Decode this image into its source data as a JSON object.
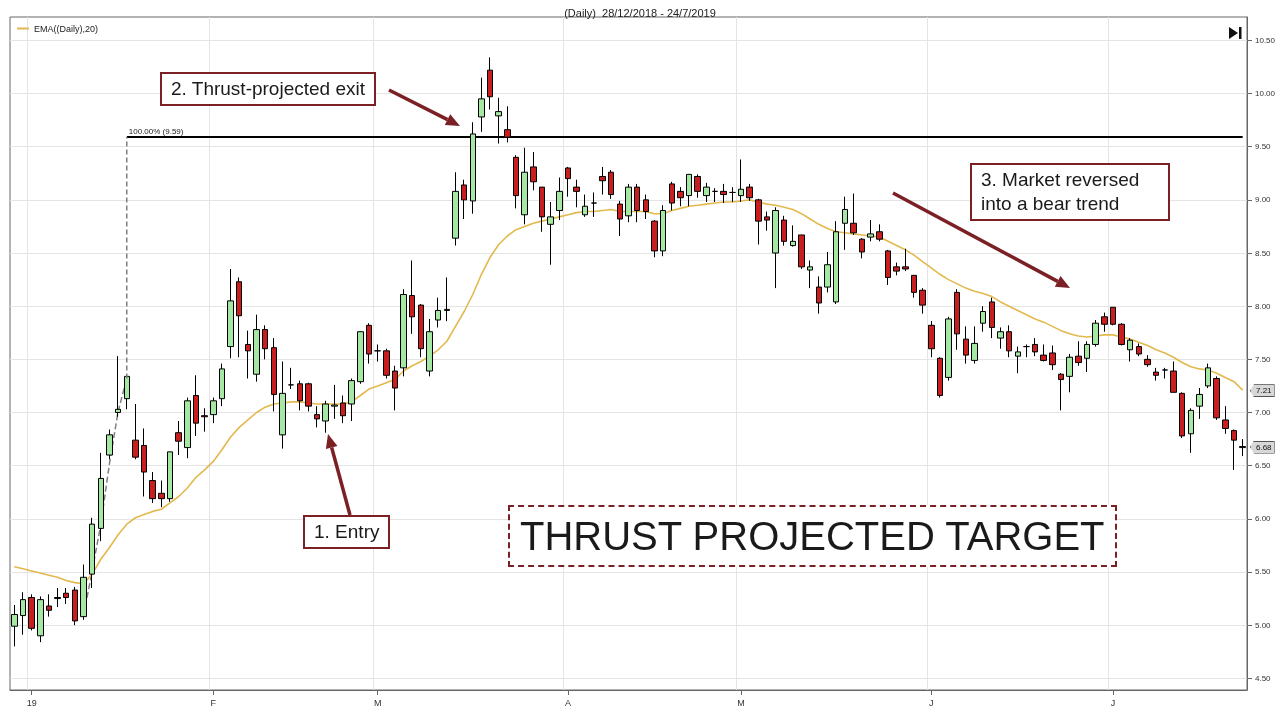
{
  "chart_data": {
    "type": "candlestick",
    "title": "(Daily)  28/12/2018 - 24/7/2019",
    "categories": [
      null,
      null,
      "19",
      null,
      null,
      null,
      null,
      null,
      null,
      null,
      null,
      null,
      null,
      null,
      null,
      null,
      null,
      null,
      null,
      null,
      null,
      null,
      null,
      "F",
      null,
      null,
      null,
      null,
      null,
      null,
      null,
      null,
      null,
      null,
      null,
      null,
      null,
      null,
      null,
      null,
      null,
      null,
      "M",
      null,
      null,
      null,
      null,
      null,
      null,
      null,
      null,
      null,
      null,
      null,
      null,
      null,
      null,
      null,
      null,
      null,
      null,
      null,
      null,
      null,
      "A",
      null,
      null,
      null,
      null,
      null,
      null,
      null,
      null,
      null,
      null,
      null,
      null,
      null,
      null,
      null,
      null,
      null,
      null,
      null,
      "M",
      null,
      null,
      null,
      null,
      null,
      null,
      null,
      null,
      null,
      null,
      null,
      null,
      null,
      null,
      null,
      null,
      null,
      null,
      null,
      null,
      null,
      "J",
      null,
      null,
      null,
      null,
      null,
      null,
      null,
      null,
      null,
      null,
      null,
      null,
      null,
      null,
      null,
      null,
      null,
      null,
      null,
      null,
      "J",
      null,
      null,
      null,
      null,
      null,
      null,
      null,
      null,
      null,
      null,
      null,
      null,
      null,
      null,
      null
    ],
    "ohlc": [
      [
        4.99,
        5.19,
        4.8,
        5.1
      ],
      [
        5.09,
        5.31,
        4.91,
        5.24
      ],
      [
        5.26,
        5.29,
        4.95,
        4.97
      ],
      [
        4.9,
        5.27,
        4.84,
        5.24
      ],
      [
        5.18,
        5.29,
        5.08,
        5.14
      ],
      [
        5.25,
        5.35,
        5.17,
        5.26
      ],
      [
        5.3,
        5.35,
        5.2,
        5.26
      ],
      [
        5.33,
        5.36,
        5.0,
        5.04
      ],
      [
        5.08,
        5.57,
        5.05,
        5.45
      ],
      [
        5.48,
        6.01,
        5.35,
        5.95
      ],
      [
        5.91,
        6.62,
        5.79,
        6.38
      ],
      [
        6.6,
        6.84,
        6.56,
        6.79
      ],
      [
        7.0,
        7.53,
        6.96,
        7.03
      ],
      [
        7.13,
        7.36,
        7.03,
        7.34
      ],
      [
        6.74,
        7.08,
        6.56,
        6.58
      ],
      [
        6.69,
        6.85,
        6.21,
        6.44
      ],
      [
        6.36,
        6.44,
        6.15,
        6.19
      ],
      [
        6.24,
        6.36,
        6.11,
        6.19
      ],
      [
        6.19,
        6.63,
        6.16,
        6.63
      ],
      [
        6.81,
        6.92,
        6.6,
        6.73
      ],
      [
        6.67,
        7.14,
        6.57,
        7.11
      ],
      [
        7.16,
        7.35,
        6.78,
        6.9
      ],
      [
        6.97,
        7.04,
        6.82,
        6.96
      ],
      [
        6.98,
        7.14,
        6.9,
        7.11
      ],
      [
        7.13,
        7.46,
        7.06,
        7.41
      ],
      [
        7.62,
        8.35,
        7.51,
        8.05
      ],
      [
        8.23,
        8.27,
        7.52,
        7.91
      ],
      [
        7.64,
        7.77,
        7.32,
        7.58
      ],
      [
        7.36,
        7.92,
        7.29,
        7.78
      ],
      [
        7.78,
        7.82,
        7.5,
        7.6
      ],
      [
        7.61,
        7.7,
        7.01,
        7.17
      ],
      [
        6.79,
        7.48,
        6.66,
        7.18
      ],
      [
        7.26,
        7.42,
        7.22,
        7.26
      ],
      [
        7.27,
        7.3,
        7.02,
        7.11
      ],
      [
        7.27,
        7.28,
        7.01,
        7.06
      ],
      [
        6.98,
        7.06,
        6.86,
        6.94
      ],
      [
        6.92,
        7.11,
        6.81,
        7.08
      ],
      [
        7.06,
        7.26,
        6.94,
        7.07
      ],
      [
        7.09,
        7.16,
        6.9,
        6.97
      ],
      [
        7.08,
        7.32,
        6.92,
        7.3
      ],
      [
        7.29,
        7.76,
        7.27,
        7.76
      ],
      [
        7.82,
        7.84,
        7.46,
        7.55
      ],
      [
        7.58,
        7.64,
        7.48,
        7.58
      ],
      [
        7.58,
        7.6,
        7.32,
        7.35
      ],
      [
        7.39,
        7.44,
        7.02,
        7.23
      ],
      [
        7.42,
        8.16,
        7.34,
        8.11
      ],
      [
        8.1,
        8.43,
        7.74,
        7.9
      ],
      [
        8.01,
        8.02,
        7.52,
        7.6
      ],
      [
        7.39,
        7.88,
        7.34,
        7.76
      ],
      [
        7.87,
        8.08,
        7.8,
        7.96
      ],
      [
        7.96,
        8.27,
        7.86,
        7.97
      ],
      [
        8.64,
        9.26,
        8.57,
        9.08
      ],
      [
        9.14,
        9.19,
        8.82,
        9.0
      ],
      [
        8.99,
        9.73,
        8.87,
        9.62
      ],
      [
        9.78,
        10.15,
        9.64,
        9.95
      ],
      [
        10.22,
        10.34,
        9.85,
        9.97
      ],
      [
        9.79,
        9.96,
        9.53,
        9.83
      ],
      [
        9.66,
        9.88,
        9.54,
        9.59
      ],
      [
        9.4,
        9.42,
        8.92,
        9.04
      ],
      [
        8.86,
        9.49,
        8.77,
        9.26
      ],
      [
        9.31,
        9.45,
        9.09,
        9.17
      ],
      [
        9.12,
        9.12,
        8.7,
        8.84
      ],
      [
        8.77,
        8.98,
        8.39,
        8.84
      ],
      [
        8.9,
        9.21,
        8.81,
        9.08
      ],
      [
        9.3,
        9.31,
        9.03,
        9.2
      ],
      [
        9.12,
        9.19,
        8.93,
        9.08
      ],
      [
        8.86,
        9.05,
        8.84,
        8.94
      ],
      [
        8.97,
        9.07,
        8.84,
        8.97
      ],
      [
        9.22,
        9.31,
        9.05,
        9.18
      ],
      [
        9.26,
        9.28,
        9.01,
        9.05
      ],
      [
        8.96,
        8.99,
        8.66,
        8.82
      ],
      [
        8.85,
        9.15,
        8.79,
        9.12
      ],
      [
        9.12,
        9.15,
        8.79,
        8.9
      ],
      [
        9.0,
        9.05,
        8.82,
        8.89
      ],
      [
        8.8,
        8.81,
        8.46,
        8.52
      ],
      [
        8.52,
        8.95,
        8.47,
        8.9
      ],
      [
        9.15,
        9.17,
        8.9,
        8.97
      ],
      [
        9.08,
        9.12,
        8.94,
        9.02
      ],
      [
        9.04,
        9.24,
        8.94,
        9.24
      ],
      [
        9.22,
        9.24,
        9.02,
        9.08
      ],
      [
        9.04,
        9.16,
        8.98,
        9.12
      ],
      [
        9.08,
        9.11,
        8.98,
        9.08
      ],
      [
        9.08,
        9.15,
        8.97,
        9.05
      ],
      [
        9.07,
        9.12,
        8.98,
        9.07
      ],
      [
        9.04,
        9.38,
        8.98,
        9.1
      ],
      [
        9.12,
        9.15,
        8.99,
        9.02
      ],
      [
        9.0,
        9.01,
        8.58,
        8.8
      ],
      [
        8.84,
        8.89,
        8.71,
        8.81
      ],
      [
        8.5,
        8.93,
        8.17,
        8.9
      ],
      [
        8.81,
        8.85,
        8.57,
        8.61
      ],
      [
        8.57,
        8.76,
        8.56,
        8.61
      ],
      [
        8.67,
        8.67,
        8.35,
        8.37
      ],
      [
        8.34,
        8.43,
        8.17,
        8.37
      ],
      [
        8.18,
        8.28,
        7.93,
        8.03
      ],
      [
        8.18,
        8.51,
        8.13,
        8.39
      ],
      [
        8.04,
        8.8,
        8.02,
        8.7
      ],
      [
        8.78,
        9.03,
        8.53,
        8.91
      ],
      [
        8.78,
        9.06,
        8.67,
        8.69
      ],
      [
        8.63,
        8.64,
        8.45,
        8.51
      ],
      [
        8.65,
        8.81,
        8.61,
        8.68
      ],
      [
        8.7,
        8.77,
        8.61,
        8.63
      ],
      [
        8.52,
        8.53,
        8.2,
        8.27
      ],
      [
        8.37,
        8.41,
        8.29,
        8.33
      ],
      [
        8.37,
        8.54,
        8.33,
        8.35
      ],
      [
        8.29,
        8.29,
        8.08,
        8.13
      ],
      [
        8.15,
        8.17,
        7.93,
        8.01
      ],
      [
        7.82,
        7.86,
        7.52,
        7.6
      ],
      [
        7.51,
        7.52,
        7.14,
        7.16
      ],
      [
        7.33,
        7.9,
        7.3,
        7.88
      ],
      [
        8.13,
        8.16,
        7.59,
        7.74
      ],
      [
        7.69,
        7.81,
        7.46,
        7.54
      ],
      [
        7.49,
        7.81,
        7.46,
        7.65
      ],
      [
        7.84,
        8.0,
        7.76,
        7.95
      ],
      [
        8.04,
        8.08,
        7.7,
        7.8
      ],
      [
        7.7,
        7.8,
        7.6,
        7.76
      ],
      [
        7.76,
        7.82,
        7.52,
        7.58
      ],
      [
        7.53,
        7.62,
        7.37,
        7.57
      ],
      [
        7.62,
        7.64,
        7.52,
        7.62
      ],
      [
        7.64,
        7.7,
        7.53,
        7.57
      ],
      [
        7.54,
        7.64,
        7.48,
        7.49
      ],
      [
        7.56,
        7.63,
        7.4,
        7.45
      ],
      [
        7.36,
        7.37,
        7.02,
        7.31
      ],
      [
        7.34,
        7.55,
        7.19,
        7.52
      ],
      [
        7.53,
        7.67,
        7.44,
        7.47
      ],
      [
        7.51,
        7.67,
        7.38,
        7.64
      ],
      [
        7.64,
        7.87,
        7.62,
        7.84
      ],
      [
        7.9,
        7.94,
        7.76,
        7.83
      ],
      [
        7.99,
        7.99,
        7.82,
        7.83
      ],
      [
        7.83,
        7.84,
        7.63,
        7.64
      ],
      [
        7.59,
        7.7,
        7.48,
        7.68
      ],
      [
        7.62,
        7.65,
        7.53,
        7.55
      ],
      [
        7.5,
        7.54,
        7.43,
        7.45
      ],
      [
        7.38,
        7.42,
        7.3,
        7.35
      ],
      [
        7.4,
        7.42,
        7.32,
        7.4
      ],
      [
        7.39,
        7.48,
        7.19,
        7.19
      ],
      [
        7.18,
        7.19,
        6.76,
        6.78
      ],
      [
        6.8,
        7.04,
        6.62,
        7.02
      ],
      [
        7.06,
        7.23,
        6.94,
        7.17
      ],
      [
        7.25,
        7.46,
        7.23,
        7.42
      ],
      [
        7.32,
        7.34,
        6.93,
        6.95
      ],
      [
        6.93,
        7.06,
        6.8,
        6.85
      ],
      [
        6.83,
        6.84,
        6.46,
        6.74
      ],
      [
        6.67,
        6.75,
        6.59,
        6.68
      ]
    ],
    "colors": [
      "#a4e8a4",
      "#a4e8a4",
      "#c81e1e",
      "#a4e8a4",
      "#c81e1e",
      "#a4e8a4",
      "#c81e1e",
      "#c81e1e",
      "#a4e8a4",
      "#a4e8a4",
      "#a4e8a4",
      "#a4e8a4",
      "#a4e8a4",
      "#a4e8a4",
      "#c81e1e",
      "#c81e1e",
      "#c81e1e",
      "#c81e1e",
      "#a4e8a4",
      "#c81e1e",
      "#a4e8a4",
      "#c81e1e",
      "#c81e1e",
      "#a4e8a4",
      "#a4e8a4",
      "#a4e8a4",
      "#c81e1e",
      "#c81e1e",
      "#a4e8a4",
      "#c81e1e",
      "#c81e1e",
      "#a4e8a4",
      "#000000",
      "#c81e1e",
      "#c81e1e",
      "#c81e1e",
      "#a4e8a4",
      "#a4e8a4",
      "#c81e1e",
      "#a4e8a4",
      "#a4e8a4",
      "#c81e1e",
      "#000000",
      "#c81e1e",
      "#c81e1e",
      "#a4e8a4",
      "#c81e1e",
      "#c81e1e",
      "#a4e8a4",
      "#a4e8a4",
      "#a4e8a4",
      "#a4e8a4",
      "#c81e1e",
      "#a4e8a4",
      "#a4e8a4",
      "#c81e1e",
      "#a4e8a4",
      "#c81e1e",
      "#c81e1e",
      "#a4e8a4",
      "#c81e1e",
      "#c81e1e",
      "#a4e8a4",
      "#a4e8a4",
      "#c81e1e",
      "#c81e1e",
      "#a4e8a4",
      "#000000",
      "#c81e1e",
      "#c81e1e",
      "#c81e1e",
      "#a4e8a4",
      "#c81e1e",
      "#c81e1e",
      "#c81e1e",
      "#a4e8a4",
      "#c81e1e",
      "#c81e1e",
      "#a4e8a4",
      "#c81e1e",
      "#a4e8a4",
      "#000000",
      "#c81e1e",
      "#000000",
      "#a4e8a4",
      "#c81e1e",
      "#c81e1e",
      "#c81e1e",
      "#a4e8a4",
      "#c81e1e",
      "#a4e8a4",
      "#c81e1e",
      "#a4e8a4",
      "#c81e1e",
      "#a4e8a4",
      "#a4e8a4",
      "#a4e8a4",
      "#c81e1e",
      "#c81e1e",
      "#a4e8a4",
      "#c81e1e",
      "#c81e1e",
      "#c81e1e",
      "#c81e1e",
      "#c81e1e",
      "#c81e1e",
      "#c81e1e",
      "#c81e1e",
      "#a4e8a4",
      "#c81e1e",
      "#c81e1e",
      "#a4e8a4",
      "#a4e8a4",
      "#c81e1e",
      "#a4e8a4",
      "#c81e1e",
      "#a4e8a4",
      "#000000",
      "#c81e1e",
      "#c81e1e",
      "#c81e1e",
      "#c81e1e",
      "#a4e8a4",
      "#c81e1e",
      "#a4e8a4",
      "#a4e8a4",
      "#c81e1e",
      "#c81e1e",
      "#c81e1e",
      "#a4e8a4",
      "#c81e1e",
      "#c81e1e",
      "#c81e1e",
      "#000000",
      "#c81e1e",
      "#c81e1e",
      "#a4e8a4",
      "#a4e8a4",
      "#a4e8a4",
      "#c81e1e",
      "#c81e1e",
      "#c81e1e",
      "#a4e8a4"
    ],
    "series": [
      {
        "type": "line",
        "name": "EMA((Daily),20)",
        "color": "#e3b94e",
        "values": [
          5.55,
          5.53,
          5.51,
          5.49,
          5.47,
          5.45,
          5.42,
          5.4,
          5.39,
          5.48,
          5.62,
          5.73,
          5.85,
          5.95,
          6.01,
          6.04,
          6.07,
          6.09,
          6.15,
          6.21,
          6.29,
          6.39,
          6.46,
          6.54,
          6.65,
          6.77,
          6.86,
          6.93,
          7.0,
          7.05,
          7.08,
          7.09,
          7.1,
          7.1,
          7.09,
          7.08,
          7.08,
          7.08,
          7.08,
          7.1,
          7.16,
          7.22,
          7.25,
          7.28,
          7.31,
          7.39,
          7.44,
          7.48,
          7.53,
          7.59,
          7.67,
          7.81,
          7.95,
          8.11,
          8.3,
          8.46,
          8.58,
          8.66,
          8.72,
          8.75,
          8.78,
          8.8,
          8.82,
          8.84,
          8.86,
          8.88,
          8.89,
          8.89,
          8.9,
          8.91,
          8.89,
          8.89,
          8.89,
          8.89,
          8.87,
          8.87,
          8.9,
          8.92,
          8.94,
          8.95,
          8.96,
          8.97,
          8.98,
          8.98,
          8.99,
          9.0,
          8.98,
          8.96,
          8.95,
          8.93,
          8.91,
          8.87,
          8.82,
          8.77,
          8.73,
          8.7,
          8.69,
          8.68,
          8.67,
          8.66,
          8.65,
          8.61,
          8.57,
          8.53,
          8.48,
          8.42,
          8.36,
          8.3,
          8.25,
          8.21,
          8.17,
          8.14,
          8.12,
          8.09,
          8.04,
          8.0,
          7.96,
          7.92,
          7.88,
          7.85,
          7.81,
          7.77,
          7.74,
          7.72,
          7.71,
          7.72,
          7.73,
          7.73,
          7.71,
          7.69,
          7.66,
          7.63,
          7.59,
          7.56,
          7.52,
          7.47,
          7.43,
          7.41,
          7.4,
          7.37,
          7.33,
          7.29,
          7.21
        ]
      },
      {
        "type": "line",
        "color": "#808080",
        "line_style": "dashed",
        "values": [
          null,
          null,
          null,
          null,
          null,
          null,
          null,
          null,
          5.09,
          5.51,
          5.95,
          6.52,
          7.01,
          7.32,
          null,
          null,
          null,
          null,
          null,
          null,
          null,
          null,
          null,
          null,
          null,
          null,
          null,
          null,
          null,
          null,
          null,
          null,
          null,
          null,
          null,
          null,
          null,
          null,
          null,
          null,
          null,
          null,
          null,
          null,
          null,
          null,
          null,
          null,
          null,
          null,
          null,
          null,
          null,
          null,
          null,
          null,
          null,
          null,
          null,
          null,
          null,
          null,
          null,
          null,
          null,
          null,
          null,
          null,
          null,
          null,
          null,
          null,
          null,
          null,
          null,
          null,
          null,
          null,
          null,
          null,
          null,
          null,
          null,
          null,
          null,
          null,
          null,
          null,
          null,
          null,
          null,
          null,
          null,
          null,
          null,
          null,
          null,
          null,
          null,
          null,
          null,
          null,
          null,
          null,
          null,
          null,
          null,
          null,
          null,
          null,
          null,
          null,
          null,
          null,
          null,
          null,
          null,
          null,
          null,
          null,
          null,
          null,
          null,
          null,
          null,
          null,
          null,
          null,
          null,
          null,
          null,
          null,
          null,
          null,
          null,
          null,
          null,
          null,
          null,
          null,
          null,
          null,
          null
        ]
      }
    ],
    "ylim": [
      4.39,
      10.72
    ],
    "yticks": [
      {
        "value": 4.5,
        "label": "4.50"
      },
      {
        "value": 5,
        "label": "5.00"
      },
      {
        "value": 5.5,
        "label": "5.50"
      },
      {
        "value": 6,
        "label": "6.00"
      },
      {
        "value": 6.5,
        "label": "6.50"
      },
      {
        "value": 7,
        "label": "7.00"
      },
      {
        "value": 7.5,
        "label": "7.50"
      },
      {
        "value": 8,
        "label": "8.00"
      },
      {
        "value": 8.5,
        "label": "8.50"
      },
      {
        "value": 9,
        "label": "9.00"
      },
      {
        "value": 9.5,
        "label": "9.50"
      },
      {
        "value": 10,
        "label": "10.00"
      },
      {
        "value": 10.5,
        "label": "10.50"
      }
    ],
    "grid": true,
    "legend": "top left",
    "ref_lines": [
      {
        "axis": "y",
        "value": 9.59,
        "label": "100.00% (9.59)",
        "color": "#000000"
      }
    ],
    "annotations": [
      "2. Thrust-projected exit",
      "3. Market reversed into a bear trend",
      "1. Entry",
      "THRUST PROJECTED TARGET",
      {
        "text": "7.21",
        "y": 7.21
      },
      {
        "text": "6.68",
        "y": 6.68
      }
    ]
  }
}
